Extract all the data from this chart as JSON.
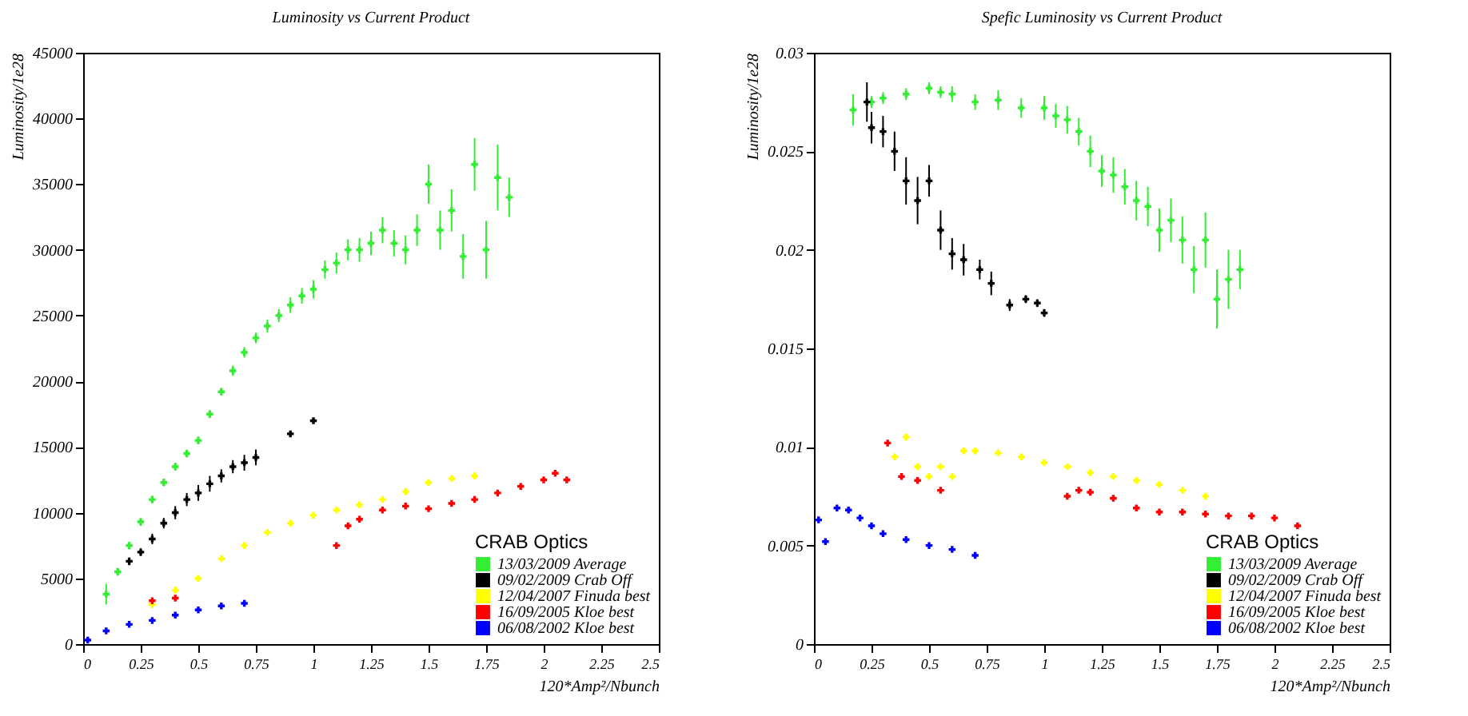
{
  "chart_data": [
    {
      "type": "scatter",
      "title": "Luminosity vs Current Product",
      "xlabel": "120*Amp²/Nbunch",
      "ylabel": "Luminosity/1e28",
      "legend_title": "CRAB Optics",
      "legend": "bottom right",
      "marker": "cross",
      "xlim": [
        0,
        2.5
      ],
      "xticks": [
        0,
        0.25,
        0.5,
        0.75,
        1,
        1.25,
        1.5,
        1.75,
        2,
        2.25,
        2.5
      ],
      "ylim": [
        0,
        45000
      ],
      "yticks": [
        0,
        5000,
        10000,
        15000,
        20000,
        25000,
        30000,
        35000,
        40000,
        45000
      ],
      "series": [
        {
          "name": "13/03/2009 Average",
          "color": "#33ee33",
          "x": [
            0.1,
            0.15,
            0.2,
            0.25,
            0.3,
            0.35,
            0.4,
            0.45,
            0.5,
            0.55,
            0.6,
            0.65,
            0.7,
            0.75,
            0.8,
            0.85,
            0.9,
            0.95,
            1,
            1.05,
            1.1,
            1.15,
            1.2,
            1.25,
            1.3,
            1.35,
            1.4,
            1.45,
            1.5,
            1.55,
            1.6,
            1.65,
            1.7,
            1.75,
            1.8,
            1.85
          ],
          "values": [
            3800,
            5500,
            7500,
            9300,
            11000,
            12300,
            13500,
            14500,
            15500,
            17500,
            19200,
            20800,
            22200,
            23300,
            24200,
            25000,
            25800,
            26500,
            27000,
            28500,
            29000,
            30000,
            30000,
            30500,
            31500,
            30500,
            30000,
            31500,
            35000,
            31500,
            33000,
            29500,
            36500,
            30000,
            35500,
            34000
          ],
          "errors": [
            800,
            300,
            300,
            300,
            300,
            300,
            300,
            300,
            300,
            300,
            300,
            400,
            400,
            400,
            500,
            500,
            600,
            600,
            700,
            700,
            800,
            800,
            900,
            900,
            1000,
            1000,
            1100,
            1200,
            1500,
            1500,
            1600,
            1700,
            2000,
            2200,
            2500,
            1500
          ]
        },
        {
          "name": "09/02/2009 Crab Off",
          "color": "#000000",
          "x": [
            0.2,
            0.25,
            0.3,
            0.35,
            0.4,
            0.45,
            0.5,
            0.55,
            0.6,
            0.65,
            0.7,
            0.75,
            0.9,
            1
          ],
          "values": [
            6300,
            7000,
            8000,
            9200,
            10000,
            11000,
            11500,
            12200,
            12800,
            13500,
            13800,
            14200,
            16000,
            17000
          ],
          "errors": [
            300,
            300,
            400,
            400,
            500,
            500,
            600,
            600,
            500,
            500,
            600,
            600,
            200,
            200
          ]
        },
        {
          "name": "12/04/2007 Finuda best",
          "color": "#ffff00",
          "x": [
            0.3,
            0.4,
            0.5,
            0.6,
            0.7,
            0.8,
            0.9,
            1,
            1.1,
            1.2,
            1.3,
            1.4,
            1.5,
            1.6,
            1.7
          ],
          "values": [
            3000,
            4100,
            5000,
            6500,
            7500,
            8500,
            9200,
            9800,
            10200,
            10600,
            11000,
            11600,
            12300,
            12600,
            12800
          ]
        },
        {
          "name": "16/09/2005 Kloe best",
          "color": "#ff0000",
          "x": [
            0.3,
            0.4,
            1.1,
            1.15,
            1.2,
            1.3,
            1.4,
            1.5,
            1.6,
            1.7,
            1.8,
            1.9,
            2,
            2.05,
            2.1
          ],
          "values": [
            3300,
            3500,
            7500,
            9000,
            9500,
            10200,
            10500,
            10300,
            10700,
            11000,
            11500,
            12000,
            12500,
            13000,
            12500
          ]
        },
        {
          "name": "06/08/2002 Kloe best",
          "color": "#0000ff",
          "x": [
            0.02,
            0.1,
            0.2,
            0.3,
            0.4,
            0.5,
            0.6,
            0.7
          ],
          "values": [
            300,
            1000,
            1500,
            1800,
            2200,
            2600,
            2900,
            3100
          ]
        }
      ]
    },
    {
      "type": "scatter",
      "title": "Spefic Luminosity vs Current Product",
      "xlabel": "120*Amp²/Nbunch",
      "ylabel": "Luminosity/1e28",
      "legend_title": "CRAB Optics",
      "legend": "bottom right",
      "marker": "cross",
      "xlim": [
        0,
        2.5
      ],
      "xticks": [
        0,
        0.25,
        0.5,
        0.75,
        1,
        1.25,
        1.5,
        1.75,
        2,
        2.25,
        2.5
      ],
      "ylim": [
        0,
        0.03
      ],
      "yticks": [
        0,
        0.005,
        0.01,
        0.015,
        0.02,
        0.025,
        0.03
      ],
      "series": [
        {
          "name": "13/03/2009 Average",
          "color": "#33ee33",
          "x": [
            0.17,
            0.25,
            0.3,
            0.4,
            0.5,
            0.55,
            0.6,
            0.7,
            0.8,
            0.9,
            1,
            1.05,
            1.1,
            1.15,
            1.2,
            1.25,
            1.3,
            1.35,
            1.4,
            1.45,
            1.5,
            1.55,
            1.6,
            1.65,
            1.7,
            1.75,
            1.8,
            1.85
          ],
          "values": [
            0.0271,
            0.0275,
            0.0277,
            0.0279,
            0.0282,
            0.028,
            0.0279,
            0.0275,
            0.0276,
            0.0272,
            0.0272,
            0.0268,
            0.0266,
            0.026,
            0.025,
            0.024,
            0.0238,
            0.0232,
            0.0225,
            0.0222,
            0.021,
            0.0215,
            0.0205,
            0.019,
            0.0205,
            0.0175,
            0.0185,
            0.019
          ],
          "errors": [
            0.0008,
            0.0003,
            0.0003,
            0.0003,
            0.0003,
            0.0003,
            0.0004,
            0.0004,
            0.0005,
            0.0005,
            0.0006,
            0.0006,
            0.0007,
            0.0007,
            0.0008,
            0.0008,
            0.0009,
            0.0009,
            0.001,
            0.001,
            0.0011,
            0.0011,
            0.0012,
            0.0012,
            0.0014,
            0.0015,
            0.0015,
            0.001
          ]
        },
        {
          "name": "09/02/2009 Crab Off",
          "color": "#000000",
          "x": [
            0.23,
            0.25,
            0.3,
            0.35,
            0.4,
            0.45,
            0.5,
            0.55,
            0.6,
            0.65,
            0.72,
            0.77,
            0.85,
            0.92,
            0.97,
            1
          ],
          "values": [
            0.0275,
            0.0262,
            0.026,
            0.025,
            0.0235,
            0.0225,
            0.0235,
            0.021,
            0.0198,
            0.0195,
            0.019,
            0.0183,
            0.0172,
            0.0175,
            0.0173,
            0.0168
          ],
          "errors": [
            0.001,
            0.0008,
            0.0008,
            0.001,
            0.0012,
            0.0012,
            0.0008,
            0.001,
            0.0008,
            0.0008,
            0.0005,
            0.0006,
            0.0003,
            0.0002,
            0.0002,
            0.0002
          ]
        },
        {
          "name": "12/04/2007 Finuda best",
          "color": "#ffff00",
          "x": [
            0.35,
            0.4,
            0.45,
            0.5,
            0.55,
            0.6,
            0.65,
            0.7,
            0.8,
            0.9,
            1,
            1.1,
            1.2,
            1.3,
            1.4,
            1.5,
            1.6,
            1.7
          ],
          "values": [
            0.0095,
            0.0105,
            0.009,
            0.0085,
            0.009,
            0.0085,
            0.0098,
            0.0098,
            0.0097,
            0.0095,
            0.0092,
            0.009,
            0.0087,
            0.0085,
            0.0083,
            0.0081,
            0.0078,
            0.0075
          ]
        },
        {
          "name": "16/09/2005 Kloe best",
          "color": "#ff0000",
          "x": [
            0.32,
            0.38,
            0.45,
            0.55,
            1.1,
            1.15,
            1.2,
            1.3,
            1.4,
            1.5,
            1.6,
            1.7,
            1.8,
            1.9,
            2,
            2.1
          ],
          "values": [
            0.0102,
            0.0085,
            0.0083,
            0.0078,
            0.0075,
            0.0078,
            0.0077,
            0.0074,
            0.0069,
            0.0067,
            0.0067,
            0.0066,
            0.0065,
            0.0065,
            0.0064,
            0.006
          ]
        },
        {
          "name": "06/08/2002 Kloe best",
          "color": "#0000ff",
          "x": [
            0.02,
            0.05,
            0.1,
            0.15,
            0.2,
            0.25,
            0.3,
            0.4,
            0.5,
            0.6,
            0.7
          ],
          "values": [
            0.0063,
            0.0052,
            0.0069,
            0.0068,
            0.0064,
            0.006,
            0.0056,
            0.0053,
            0.005,
            0.0048,
            0.0045
          ]
        }
      ]
    }
  ]
}
